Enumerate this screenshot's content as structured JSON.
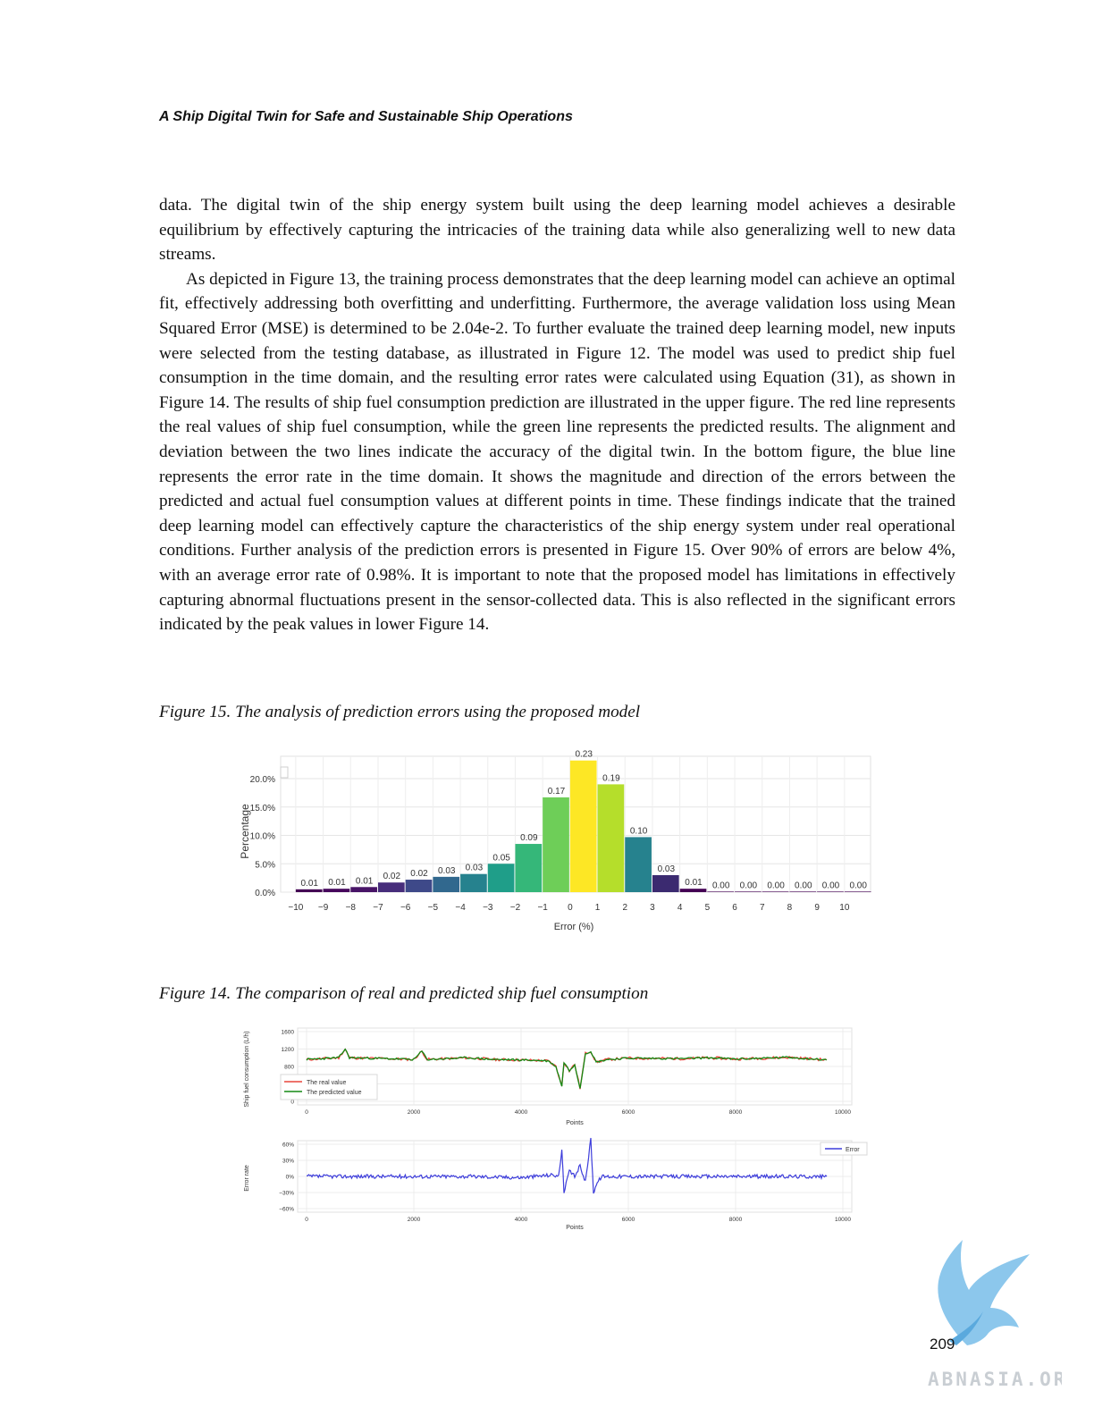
{
  "running_head": "A Ship Digital Twin for Safe and Sustainable Ship Operations",
  "paragraphs": [
    "data. The digital twin of the ship energy system built using the deep learning model achieves a desirable equilibrium by effectively capturing the intricacies of the training data while also generalizing well to new data streams.",
    "As depicted in Figure 13, the training process demonstrates that the deep learning model can achieve an optimal fit, effectively addressing both overfitting and underfitting. Furthermore, the average validation loss using Mean Squared Error (MSE) is determined to be 2.04e-2. To further evaluate the trained deep learning model, new inputs were selected from the testing database, as illustrated in Figure 12. The model was used to predict ship fuel consumption in the time domain, and the resulting error rates were calculated using Equation (31), as shown in Figure 14. The results of ship fuel consumption prediction are illustrated in the upper figure. The red line represents the real values of ship fuel consumption, while the green line represents the predicted results. The alignment and deviation between the two lines indicate the accuracy of the digital twin. In the bottom figure, the blue line represents the error rate in the time domain. It shows the magnitude and direction of the errors between the predicted and actual fuel consumption values at different points in time. These findings indicate that the trained deep learning model can effectively capture the characteristics of the ship energy system under real operational conditions. Further analysis of the prediction errors is presented in Figure 15. Over 90% of errors are below 4%, with an average error rate of 0.98%. It is important to note that the proposed model has limitations in effectively capturing abnormal fluctuations present in the sensor-collected data. This is also reflected in the significant errors indicated by the peak values in lower Figure 14."
  ],
  "figure15_caption": "Figure 15. The analysis of prediction errors using the proposed model",
  "figure14_caption": "Figure 14. The comparison of real and predicted ship fuel consumption",
  "page_number": "209",
  "watermark_text": "ABNASIA.ORG",
  "chart_data": [
    {
      "type": "bar",
      "ylabel": "Percentage",
      "xlabel": "Error (%)",
      "ylim": [
        0,
        0.23
      ],
      "yticks": [
        "0.0%",
        "5.0%",
        "10.0%",
        "15.0%",
        "20.0%"
      ],
      "xticks": [
        "−10",
        "−9",
        "−8",
        "−7",
        "−6",
        "−5",
        "−4",
        "−3",
        "−2",
        "−1",
        "0",
        "1",
        "2",
        "3",
        "4",
        "5",
        "6",
        "7",
        "8",
        "9",
        "10"
      ],
      "bin_labels": [
        "0.01",
        "0.01",
        "0.01",
        "0.02",
        "0.02",
        "0.03",
        "0.03",
        "0.05",
        "0.09",
        "0.17",
        "0.23",
        "0.19",
        "0.10",
        "0.03",
        "0.01",
        "0.00",
        "0.00",
        "0.00",
        "0.00",
        "0.00",
        "0.00"
      ],
      "values": [
        0.005,
        0.006,
        0.009,
        0.017,
        0.022,
        0.027,
        0.032,
        0.05,
        0.085,
        0.167,
        0.232,
        0.19,
        0.097,
        0.03,
        0.006,
        0.001,
        0.001,
        0.001,
        0.001,
        0.001,
        0.001
      ],
      "colors": [
        "#440154",
        "#46085c",
        "#481467",
        "#472d7b",
        "#3e4989",
        "#31688e",
        "#26828e",
        "#1f9e89",
        "#35b779",
        "#6ece58",
        "#fde725",
        "#b5de2b",
        "#26828e",
        "#3b2a70",
        "#440154",
        "#440154",
        "#440154",
        "#440154",
        "#440154",
        "#440154",
        "#440154"
      ],
      "grid": true
    },
    {
      "type": "line",
      "xlabel": "Points",
      "ylabel": "Ship fuel consumption (L/h)",
      "xlim": [
        0,
        10000
      ],
      "ylim": [
        0,
        1600
      ],
      "xticks": [
        "0",
        "2000",
        "4000",
        "6000",
        "8000",
        "10000"
      ],
      "yticks": [
        "0",
        "400",
        "800",
        "1200",
        "1600"
      ],
      "legend_position": "bottom-left",
      "series": [
        {
          "name": "The real value",
          "color": "#e8453c"
        },
        {
          "name": "The predicted value",
          "color": "#138a13"
        }
      ],
      "x": [
        0,
        600,
        720,
        800,
        1500,
        2000,
        2150,
        2250,
        3000,
        3500,
        4000,
        4500,
        4650,
        4760,
        4800,
        4900,
        5000,
        5100,
        5200,
        5300,
        5400,
        5600,
        6000,
        7000,
        7500,
        8000,
        8500,
        9000,
        9700
      ],
      "values": [
        960,
        1000,
        1200,
        1000,
        980,
        960,
        1150,
        960,
        1000,
        960,
        950,
        930,
        800,
        350,
        900,
        700,
        850,
        300,
        1100,
        1150,
        900,
        960,
        990,
        980,
        1000,
        970,
        990,
        1010,
        950
      ],
      "grid": true
    },
    {
      "type": "line",
      "xlabel": "Points",
      "ylabel": "Error rate",
      "xlim": [
        0,
        10000
      ],
      "ylim": [
        -60,
        60
      ],
      "xticks": [
        "0",
        "2000",
        "4000",
        "6000",
        "8000",
        "10000"
      ],
      "yticks": [
        "60%",
        "30%",
        "0%",
        "−30%",
        "−60%"
      ],
      "legend_position": "top-right",
      "series": [
        {
          "name": "Error",
          "color": "#3d3ddb"
        }
      ],
      "x": [
        0,
        1000,
        2000,
        3000,
        4000,
        4600,
        4700,
        4760,
        4800,
        4900,
        5000,
        5100,
        5200,
        5300,
        5350,
        5400,
        5500,
        6000,
        7000,
        8000,
        9000,
        9700
      ],
      "values": [
        0,
        0,
        0,
        0,
        -2,
        3,
        0,
        50,
        -30,
        10,
        0,
        20,
        -10,
        70,
        -30,
        -15,
        0,
        0,
        0,
        0,
        0,
        0
      ],
      "grid": true
    }
  ]
}
